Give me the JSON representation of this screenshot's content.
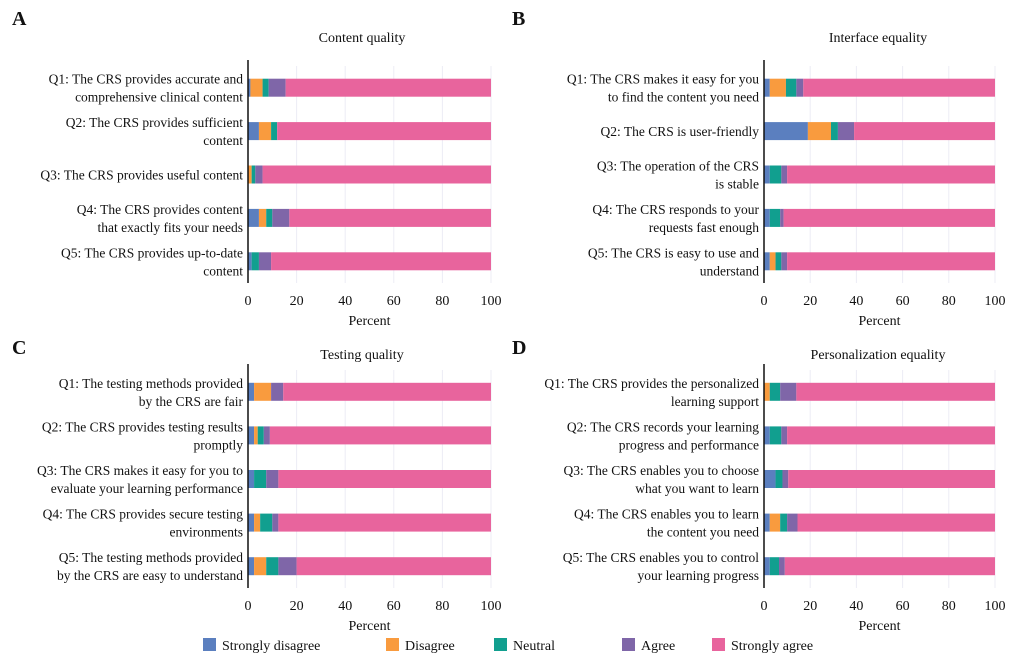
{
  "chart_data": [
    {
      "type": "bar",
      "orientation": "horizontal",
      "stacked": true,
      "panel": "A",
      "title": "Content quality",
      "xlabel": "Percent",
      "xlim": [
        0,
        100
      ],
      "xticks": [
        "0",
        "20",
        "40",
        "60",
        "80",
        "100"
      ],
      "grid": true,
      "categories": [
        [
          "Q1: The CRS provides accurate and",
          "comprehensive clinical content"
        ],
        [
          "Q2: The CRS provides sufficient",
          "content"
        ],
        [
          "Q3: The CRS provides useful content"
        ],
        [
          "Q4: The CRS provides content",
          "that exactly fits your needs"
        ],
        [
          "Q5: The CRS provides up-to-date",
          "content"
        ]
      ],
      "series": [
        {
          "name": "Strongly disagree",
          "values": [
            1,
            4.5,
            0,
            4.5,
            1.5
          ]
        },
        {
          "name": "Disagree",
          "values": [
            5,
            5,
            1.5,
            3,
            0
          ]
        },
        {
          "name": "Neutral",
          "values": [
            2.5,
            2.5,
            1.5,
            2.5,
            3
          ]
        },
        {
          "name": "Agree",
          "values": [
            7,
            0,
            3,
            7,
            5
          ]
        },
        {
          "name": "Strongly agree",
          "values": [
            84.5,
            88,
            94,
            83,
            90.5
          ]
        }
      ]
    },
    {
      "type": "bar",
      "orientation": "horizontal",
      "stacked": true,
      "panel": "B",
      "title": "Interface equality",
      "xlabel": "Percent",
      "xlim": [
        0,
        100
      ],
      "xticks": [
        "0",
        "20",
        "40",
        "60",
        "80",
        "100"
      ],
      "grid": true,
      "categories": [
        [
          "Q1: The CRS makes it easy for you",
          "to find the content you need"
        ],
        [
          "Q2: The CRS is user-friendly"
        ],
        [
          "Q3: The operation of the CRS",
          "is stable"
        ],
        [
          "Q4: The CRS responds to your",
          "requests fast enough"
        ],
        [
          "Q5: The CRS is easy to use and",
          "understand"
        ]
      ],
      "series": [
        {
          "name": "Strongly disagree",
          "values": [
            2.5,
            19,
            2.5,
            2.5,
            2.5
          ]
        },
        {
          "name": "Disagree",
          "values": [
            7,
            10,
            0,
            0,
            2.5
          ]
        },
        {
          "name": "Neutral",
          "values": [
            4.5,
            3,
            5,
            4.5,
            2.5
          ]
        },
        {
          "name": "Agree",
          "values": [
            3,
            7,
            2.5,
            1.5,
            2.5
          ]
        },
        {
          "name": "Strongly agree",
          "values": [
            83,
            61,
            90,
            91.5,
            90
          ]
        }
      ]
    },
    {
      "type": "bar",
      "orientation": "horizontal",
      "stacked": true,
      "panel": "C",
      "title": "Testing quality",
      "xlabel": "Percent",
      "xlim": [
        0,
        100
      ],
      "xticks": [
        "0",
        "20",
        "40",
        "60",
        "80",
        "100"
      ],
      "grid": true,
      "categories": [
        [
          "Q1: The testing methods provided",
          "by the CRS are fair"
        ],
        [
          "Q2: The CRS provides testing results",
          "promptly"
        ],
        [
          "Q3: The CRS makes it easy for you to",
          "evaluate your learning performance"
        ],
        [
          "Q4: The CRS provides secure testing",
          "environments"
        ],
        [
          "Q5: The testing methods provided",
          "by the CRS are easy to understand"
        ]
      ],
      "series": [
        {
          "name": "Strongly disagree",
          "values": [
            2.5,
            2.5,
            2.5,
            2.5,
            2.5
          ]
        },
        {
          "name": "Disagree",
          "values": [
            7,
            1.5,
            0,
            2.5,
            5
          ]
        },
        {
          "name": "Neutral",
          "values": [
            0,
            2.5,
            5,
            5,
            5
          ]
        },
        {
          "name": "Agree",
          "values": [
            5,
            2.5,
            5,
            2.5,
            7.5
          ]
        },
        {
          "name": "Strongly agree",
          "values": [
            85.5,
            91,
            87.5,
            87.5,
            80
          ]
        }
      ]
    },
    {
      "type": "bar",
      "orientation": "horizontal",
      "stacked": true,
      "panel": "D",
      "title": "Personalization equality",
      "xlabel": "Percent",
      "xlim": [
        0,
        100
      ],
      "xticks": [
        "0",
        "20",
        "40",
        "60",
        "80",
        "100"
      ],
      "grid": true,
      "categories": [
        [
          "Q1: The CRS provides the personalized",
          "learning support"
        ],
        [
          "Q2: The CRS records your learning",
          "progress and performance"
        ],
        [
          "Q3: The CRS enables you to choose",
          "what you want to learn"
        ],
        [
          "Q4: The CRS enables you to learn",
          "the content you need"
        ],
        [
          "Q5: The CRS enables you to control",
          "your learning progress"
        ]
      ],
      "series": [
        {
          "name": "Strongly disagree",
          "values": [
            0,
            2.5,
            5,
            2.5,
            2.5
          ]
        },
        {
          "name": "Disagree",
          "values": [
            2.5,
            0,
            0,
            4.5,
            0
          ]
        },
        {
          "name": "Neutral",
          "values": [
            4.5,
            5,
            3,
            3,
            4
          ]
        },
        {
          "name": "Agree",
          "values": [
            7,
            2.5,
            2.5,
            4.5,
            2.5
          ]
        },
        {
          "name": "Strongly agree",
          "values": [
            86,
            90,
            89.5,
            85.5,
            91
          ]
        }
      ]
    }
  ],
  "legend": {
    "placement": "bottom",
    "items": [
      "Strongly disagree",
      "Disagree",
      "Neutral",
      "Agree",
      "Strongly agree"
    ]
  },
  "colors": {
    "Strongly disagree": "#5b7fbf",
    "Disagree": "#f99b3e",
    "Neutral": "#119f8f",
    "Agree": "#7f66a8",
    "Strongly agree": "#e8649d",
    "grid": "#ececf5"
  }
}
